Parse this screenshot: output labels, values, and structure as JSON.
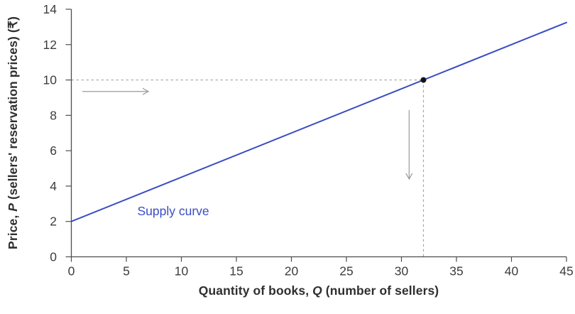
{
  "figure": {
    "background": "#ffffff"
  },
  "labels": {
    "x_parts": [
      "Quantity of books, ",
      "Q",
      " (number of sellers)"
    ],
    "y_parts": [
      "Price, ",
      "P",
      " (sellers' reservation prices) (₹)"
    ]
  },
  "chart_data": {
    "type": "line",
    "title": "",
    "xlabel": "Quantity of books, Q (number of sellers)",
    "ylabel": "Price, P (sellers' reservation prices) (₹)",
    "xlim": [
      0,
      45
    ],
    "ylim": [
      0,
      14
    ],
    "xticks": [
      0,
      5,
      10,
      15,
      20,
      25,
      30,
      35,
      40,
      45
    ],
    "yticks": [
      0,
      2,
      4,
      6,
      8,
      10,
      12,
      14
    ],
    "grid": false,
    "legend_position": "none",
    "series": [
      {
        "name": "Supply curve",
        "color": "#3a4cc2",
        "points": [
          [
            0,
            2
          ],
          [
            45,
            13.25
          ]
        ]
      }
    ],
    "marked_point": {
      "x": 32,
      "y": 10,
      "color": "#141414"
    },
    "guides": [
      {
        "style": "dashed",
        "from": [
          0,
          10
        ],
        "to": [
          32,
          10
        ]
      },
      {
        "style": "dashed",
        "from": [
          32,
          10
        ],
        "to": [
          32,
          0
        ]
      }
    ],
    "annotations": [
      {
        "type": "text",
        "text": "Supply curve",
        "x": 6.0,
        "y": 2.35,
        "color": "#3a4cc2"
      },
      {
        "type": "arrow",
        "name": "price-shift-right-arrow",
        "from": [
          1.0,
          9.35
        ],
        "to": [
          7.0,
          9.35
        ],
        "color": "#9a9a9a"
      },
      {
        "type": "arrow",
        "name": "quantity-shift-down-arrow",
        "from": [
          30.7,
          8.3
        ],
        "to": [
          30.7,
          4.4
        ],
        "color": "#9a9a9a"
      }
    ],
    "colors": {
      "axis": "#4d4d4d",
      "tick_text": "#3d3d3d",
      "dash": "#a6a6a6"
    }
  }
}
